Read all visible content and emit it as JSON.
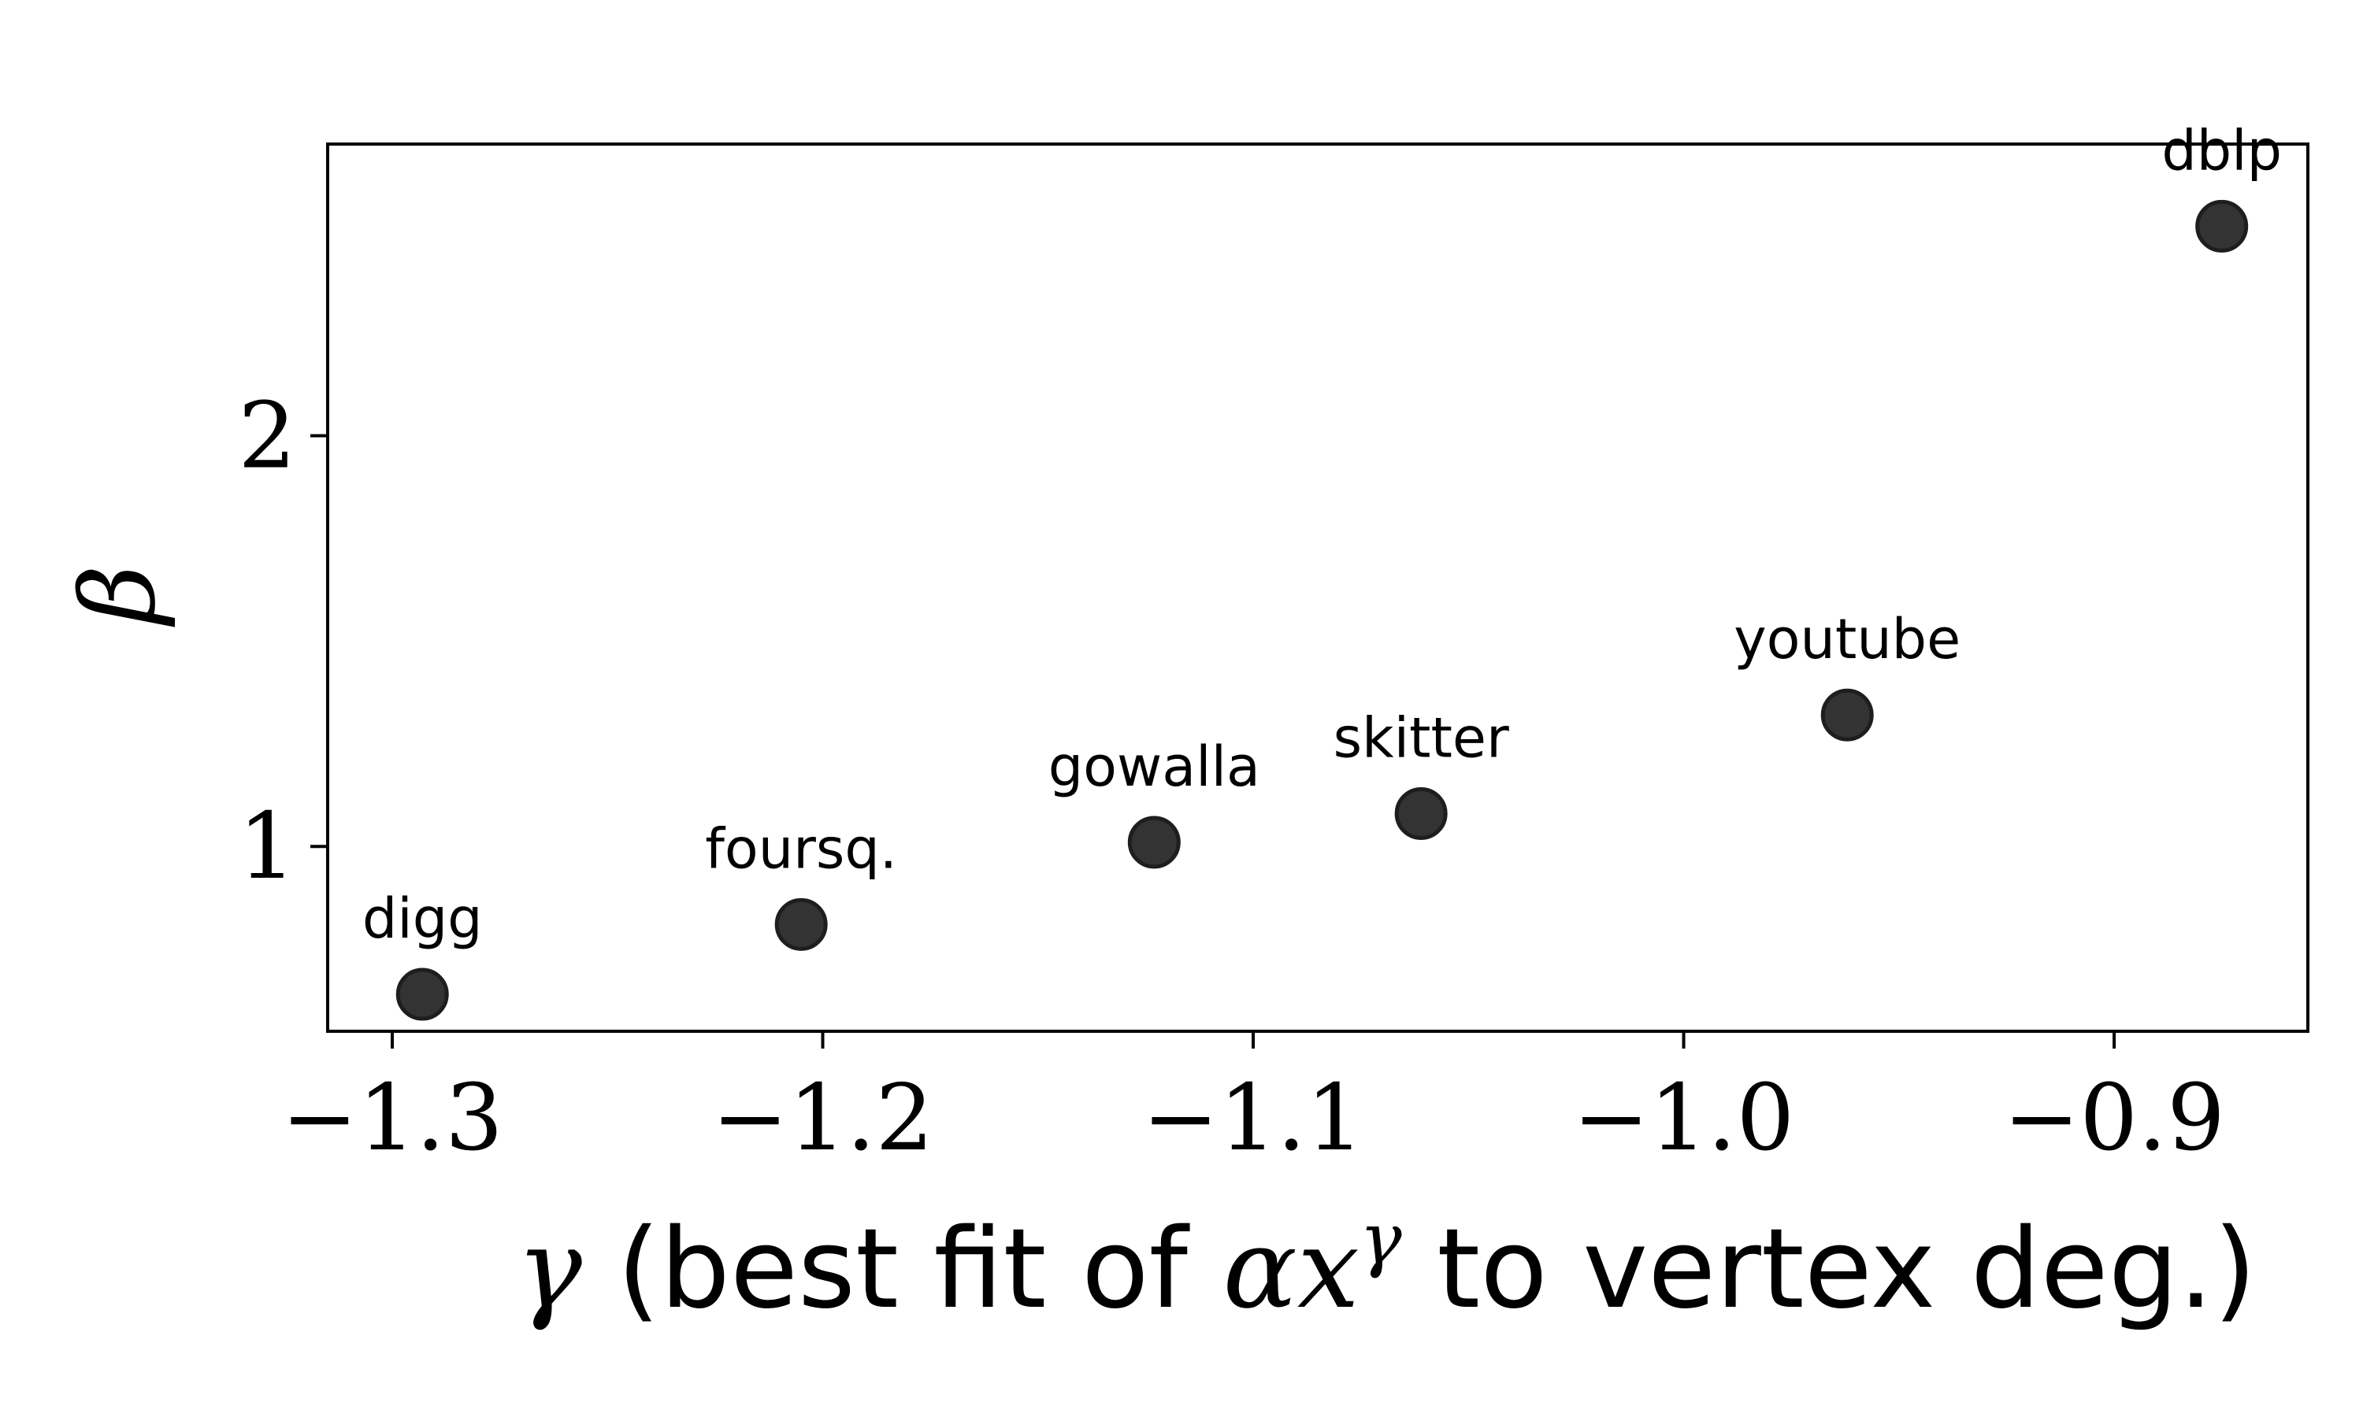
{
  "chart_data": {
    "type": "scatter",
    "xlabel": {
      "gamma": "γ",
      "text_before": " (best fit of ",
      "alpha_x": "αx",
      "superscript": "γ",
      "text_after": " to vertex deg.)"
    },
    "ylabel": "β",
    "xlim": [
      -1.315,
      -0.855
    ],
    "ylim": [
      0.55,
      2.71
    ],
    "x_ticks": [
      {
        "value": -1.3,
        "label": "−1.3"
      },
      {
        "value": -1.2,
        "label": "−1.2"
      },
      {
        "value": -1.1,
        "label": "−1.1"
      },
      {
        "value": -1.0,
        "label": "−1.0"
      },
      {
        "value": -0.9,
        "label": "−0.9"
      }
    ],
    "y_ticks": [
      {
        "value": 1,
        "label": "1"
      },
      {
        "value": 2,
        "label": "2"
      }
    ],
    "grid": false,
    "legend": "none",
    "marker_color": "#333333",
    "points": [
      {
        "label": "digg",
        "x": -1.293,
        "y": 0.64
      },
      {
        "label": "foursq.",
        "x": -1.205,
        "y": 0.81
      },
      {
        "label": "gowalla",
        "x": -1.123,
        "y": 1.01
      },
      {
        "label": "skitter",
        "x": -1.061,
        "y": 1.08
      },
      {
        "label": "youtube",
        "x": -0.962,
        "y": 1.32
      },
      {
        "label": "dblp",
        "x": -0.875,
        "y": 2.51
      }
    ]
  }
}
